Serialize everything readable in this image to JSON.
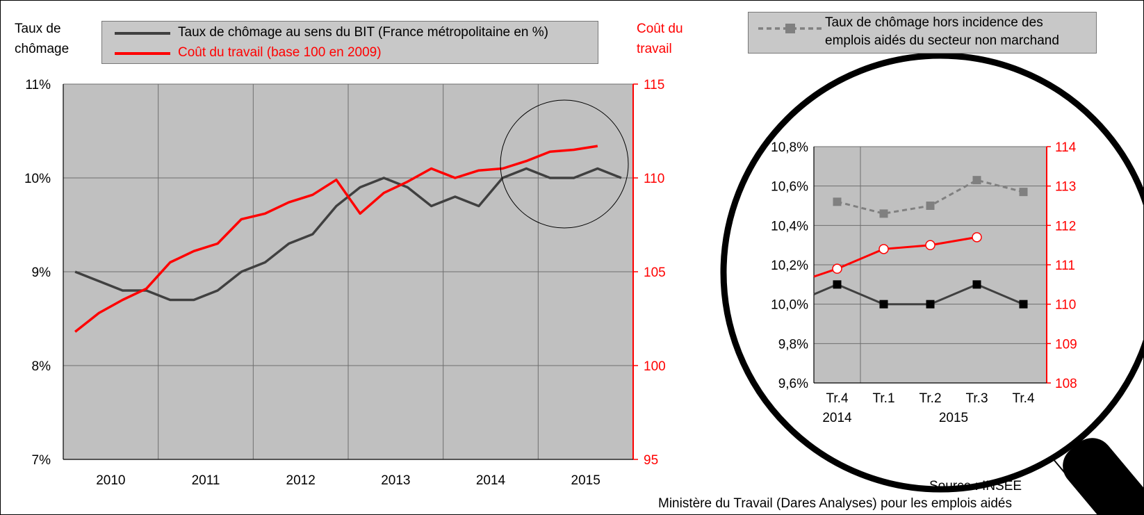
{
  "chart_data": [
    {
      "type": "line",
      "y_axis_left": {
        "label_line1": "Taux de",
        "label_line2": "chômage",
        "ticks": [
          "11%",
          "10%",
          "9%",
          "8%",
          "7%"
        ],
        "range": [
          7,
          11
        ]
      },
      "y_axis_right": {
        "label_line1": "Coût du",
        "label_line2": "travail",
        "ticks": [
          "115",
          "110",
          "105",
          "100",
          "95"
        ],
        "range": [
          95,
          115
        ],
        "color": "#ff0000"
      },
      "x_axis": {
        "years": [
          "2010",
          "2011",
          "2012",
          "2013",
          "2014",
          "2015"
        ]
      },
      "legend": [
        {
          "label": "Taux de chômage au sens du BIT (France métropolitaine en %)",
          "color": "#404040"
        },
        {
          "label": "Coût du travail (base 100 en 2009)",
          "color": "#ff0000"
        }
      ],
      "series": [
        {
          "name": "Taux de chômage au sens du BIT (France métropolitaine en %)",
          "axis": "left",
          "color": "#404040",
          "x": [
            "2010-Q1",
            "2010-Q2",
            "2010-Q3",
            "2010-Q4",
            "2011-Q1",
            "2011-Q2",
            "2011-Q3",
            "2011-Q4",
            "2012-Q1",
            "2012-Q2",
            "2012-Q3",
            "2012-Q4",
            "2013-Q1",
            "2013-Q2",
            "2013-Q3",
            "2013-Q4",
            "2014-Q1",
            "2014-Q2",
            "2014-Q3",
            "2014-Q4",
            "2015-Q1",
            "2015-Q2",
            "2015-Q3",
            "2015-Q4"
          ],
          "values": [
            9.0,
            8.9,
            8.8,
            8.8,
            8.7,
            8.7,
            8.8,
            9.0,
            9.1,
            9.3,
            9.4,
            9.7,
            9.9,
            10.0,
            9.9,
            9.7,
            9.8,
            9.7,
            10.0,
            10.1,
            10.0,
            10.0,
            10.1,
            10.0
          ]
        },
        {
          "name": "Coût du travail (base 100 en 2009)",
          "axis": "right",
          "color": "#ff0000",
          "x": [
            "2010-Q1",
            "2010-Q2",
            "2010-Q3",
            "2010-Q4",
            "2011-Q1",
            "2011-Q2",
            "2011-Q3",
            "2011-Q4",
            "2012-Q1",
            "2012-Q2",
            "2012-Q3",
            "2012-Q4",
            "2013-Q1",
            "2013-Q2",
            "2013-Q3",
            "2013-Q4",
            "2014-Q1",
            "2014-Q2",
            "2014-Q3",
            "2014-Q4",
            "2015-Q1",
            "2015-Q2",
            "2015-Q3"
          ],
          "values": [
            101.8,
            102.8,
            103.5,
            104.1,
            105.5,
            106.1,
            106.5,
            107.8,
            108.1,
            108.7,
            109.1,
            109.9,
            108.1,
            109.2,
            109.8,
            110.5,
            110.0,
            110.4,
            110.5,
            110.9,
            111.4,
            111.5,
            111.7
          ]
        }
      ],
      "grid": true
    },
    {
      "type": "line",
      "y_axis_left": {
        "ticks": [
          "10,8%",
          "10,6%",
          "10,4%",
          "10,2%",
          "10,0%",
          "9,8%",
          "9,6%"
        ],
        "range": [
          9.6,
          10.8
        ]
      },
      "y_axis_right": {
        "ticks": [
          "114",
          "113",
          "112",
          "111",
          "110",
          "109",
          "108"
        ],
        "range": [
          108,
          114
        ],
        "color": "#ff0000"
      },
      "x_axis": {
        "categories": [
          "Tr.4",
          "Tr.1",
          "Tr.2",
          "Tr.3",
          "Tr.4"
        ],
        "years": [
          "2014",
          "2015"
        ]
      },
      "legend": [
        {
          "label_line1": "Taux de chômage hors incidence des",
          "label_line2": "emplois aidés du secteur non marchand",
          "color": "#808080"
        }
      ],
      "series": [
        {
          "name": "Taux de chômage hors incidence des emplois aidés du secteur non marchand",
          "axis": "left",
          "color": "#808080",
          "values": [
            10.52,
            10.46,
            10.5,
            10.63,
            10.57
          ]
        },
        {
          "name": "Coût du travail (base 100 en 2009)",
          "axis": "right",
          "color": "#ff0000",
          "values": [
            110.9,
            111.4,
            111.5,
            111.7
          ]
        },
        {
          "name": "Taux de chômage au sens du BIT (France métropolitaine en %)",
          "axis": "left",
          "color": "#000000",
          "values": [
            10.1,
            10.0,
            10.0,
            10.1,
            10.0
          ]
        }
      ],
      "grid": true
    }
  ],
  "source_line1": "Source : INSEE",
  "source_line2": "Ministère du Travail (Dares Analyses) pour les emplois aidés"
}
